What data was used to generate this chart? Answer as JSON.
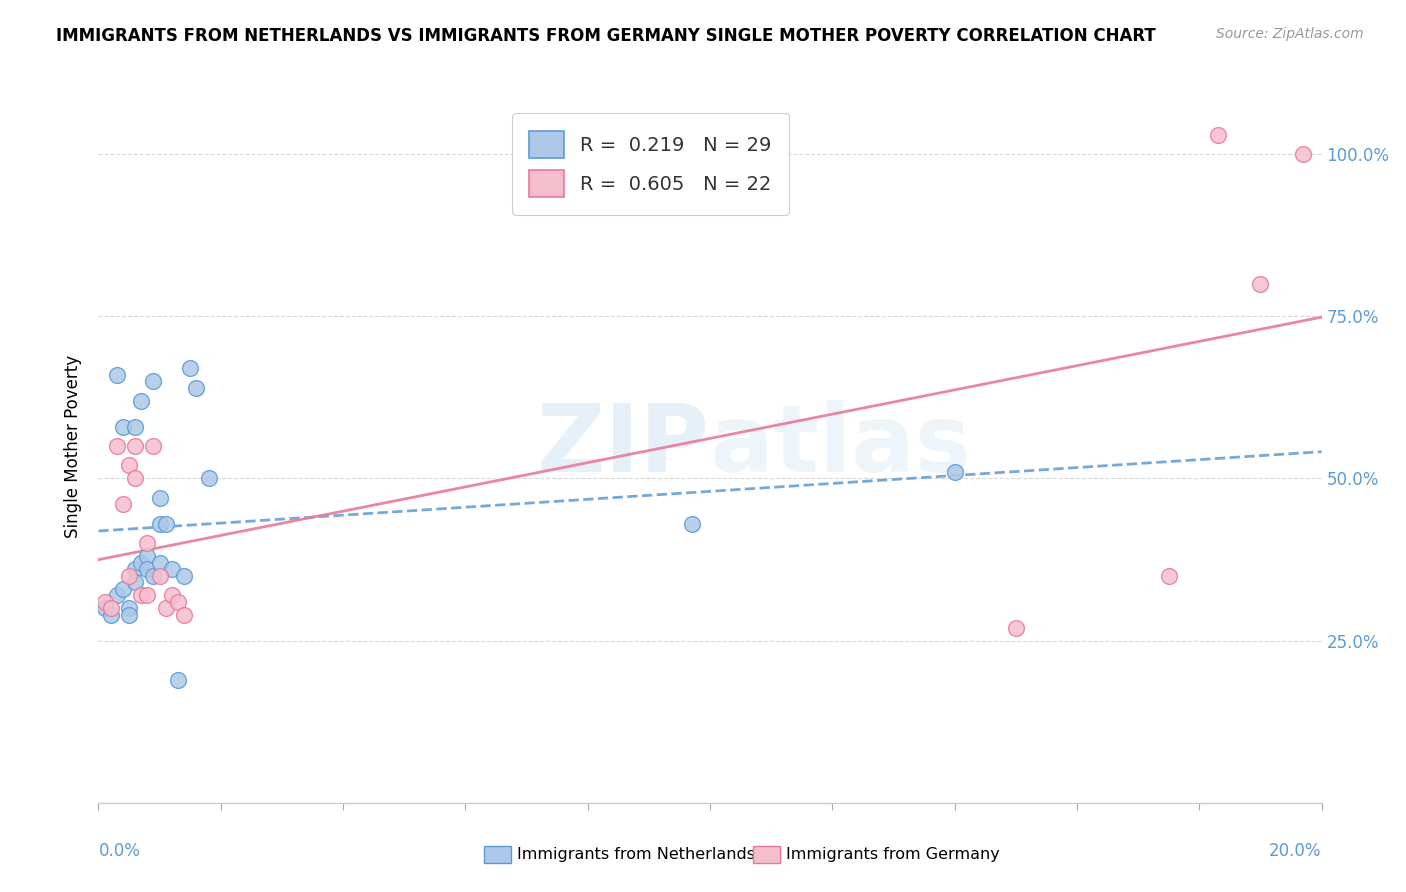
{
  "title": "IMMIGRANTS FROM NETHERLANDS VS IMMIGRANTS FROM GERMANY SINGLE MOTHER POVERTY CORRELATION CHART",
  "source": "Source: ZipAtlas.com",
  "legend_label1": "Immigrants from Netherlands",
  "legend_label2": "Immigrants from Germany",
  "R1": "0.219",
  "N1": "29",
  "R2": "0.605",
  "N2": "22",
  "netherlands_color": "#adc8e8",
  "germany_color": "#f5bece",
  "netherlands_edge": "#5b9bd5",
  "germany_edge": "#e8799a",
  "line1_color": "#5b9bd5",
  "line2_color": "#e8799a",
  "watermark": "ZIPatlas",
  "netherlands_x": [
    0.001,
    0.002,
    0.003,
    0.003,
    0.004,
    0.004,
    0.005,
    0.005,
    0.006,
    0.006,
    0.006,
    0.007,
    0.007,
    0.008,
    0.008,
    0.009,
    0.009,
    0.01,
    0.01,
    0.01,
    0.011,
    0.012,
    0.013,
    0.014,
    0.015,
    0.016,
    0.018,
    0.097,
    0.14
  ],
  "netherlands_y": [
    0.3,
    0.29,
    0.32,
    0.66,
    0.33,
    0.58,
    0.3,
    0.29,
    0.36,
    0.58,
    0.34,
    0.37,
    0.62,
    0.38,
    0.36,
    0.35,
    0.65,
    0.43,
    0.37,
    0.47,
    0.43,
    0.36,
    0.19,
    0.35,
    0.67,
    0.64,
    0.5,
    0.43,
    0.51
  ],
  "germany_x": [
    0.001,
    0.002,
    0.003,
    0.004,
    0.005,
    0.005,
    0.006,
    0.006,
    0.007,
    0.008,
    0.008,
    0.009,
    0.01,
    0.011,
    0.012,
    0.013,
    0.014,
    0.15,
    0.175,
    0.183,
    0.19,
    0.197
  ],
  "germany_y": [
    0.31,
    0.3,
    0.55,
    0.46,
    0.52,
    0.35,
    0.55,
    0.5,
    0.32,
    0.4,
    0.32,
    0.55,
    0.35,
    0.3,
    0.32,
    0.31,
    0.29,
    0.27,
    0.35,
    1.03,
    0.8,
    1.0
  ],
  "xlim": [
    0.0,
    0.2
  ],
  "ylim": [
    0.0,
    1.1
  ],
  "yticks": [
    0.25,
    0.5,
    0.75,
    1.0
  ],
  "ytick_labels": [
    "25.0%",
    "50.0%",
    "75.0%",
    "100.0%"
  ],
  "xtick_color": "#5b9bd5",
  "ytick_color": "#5b9bd5",
  "grid_color": "#d8d8d8",
  "title_fontsize": 12,
  "source_fontsize": 10,
  "tick_fontsize": 12,
  "ylabel": "Single Mother Poverty"
}
